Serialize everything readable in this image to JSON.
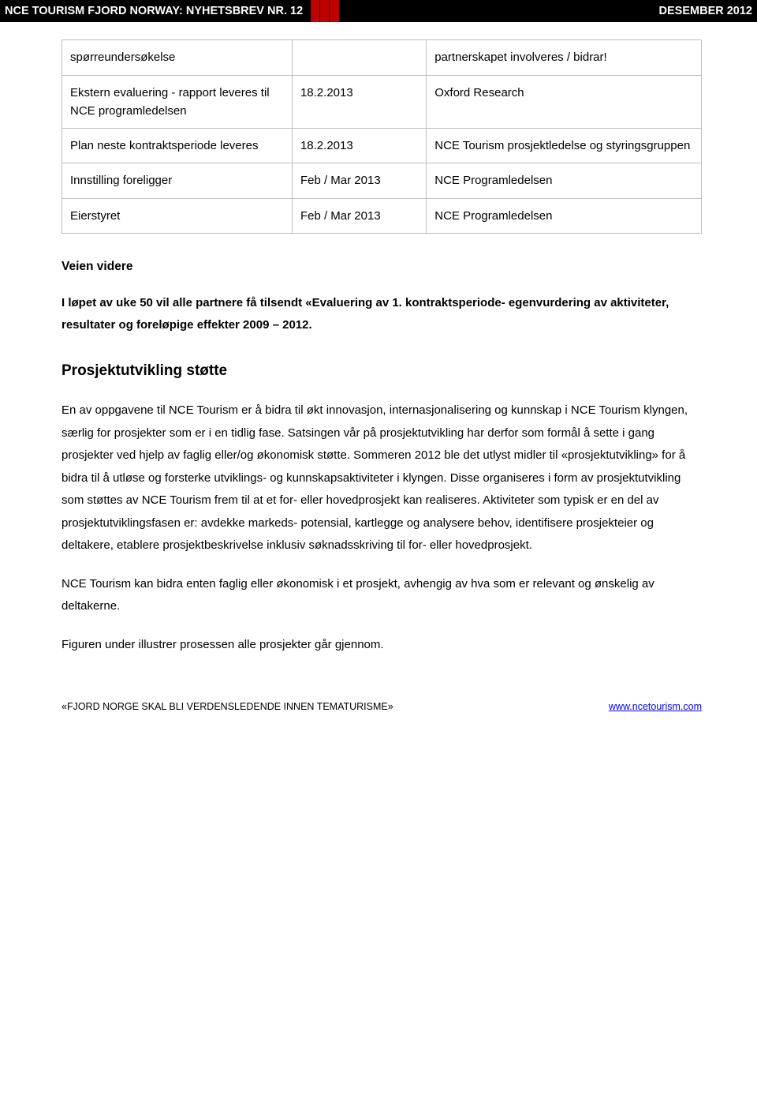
{
  "header": {
    "left": "NCE TOURISM FJORD NORWAY: NYHETSBREV NR. 12",
    "right": "DESEMBER 2012"
  },
  "table": {
    "rows": [
      [
        "spørreundersøkelse",
        "",
        "partnerskapet involveres / bidrar!"
      ],
      [
        "Ekstern evaluering - rapport leveres til NCE programledelsen",
        "18.2.2013",
        "Oxford Research"
      ],
      [
        "Plan neste kontraktsperiode leveres",
        "18.2.2013",
        "NCE Tourism prosjektledelse og styringsgruppen"
      ],
      [
        "Innstilling foreligger",
        "Feb / Mar 2013",
        "NCE Programledelsen"
      ],
      [
        "Eierstyret",
        "Feb / Mar 2013",
        "NCE Programledelsen"
      ]
    ]
  },
  "sections": {
    "veien_title": "Veien videre",
    "veien_body": "I løpet av uke 50 vil alle partnere få tilsendt «Evaluering av 1. kontraktsperiode- egenvurdering av aktiviteter, resultater og foreløpige effekter 2009 – 2012.",
    "prosjekt_title": "Prosjektutvikling støtte",
    "prosjekt_p1": "En av oppgavene til NCE Tourism er å bidra til økt innovasjon, internasjonalisering og kunnskap i NCE Tourism klyngen, særlig for prosjekter som er i en tidlig fase. Satsingen vår på prosjektutvikling har derfor som formål å sette i gang prosjekter ved hjelp av faglig eller/og økonomisk støtte. Sommeren 2012 ble det utlyst midler til «prosjektutvikling» for å bidra til å utløse og forsterke utviklings- og kunnskapsaktiviteter i klyngen. Disse organiseres i form av prosjektutvikling som støttes av NCE Tourism frem til at et for- eller hovedprosjekt kan realiseres. Aktiviteter som typisk er en del av prosjektutviklingsfasen er: avdekke markeds- potensial, kartlegge og analysere behov, identifisere prosjekteier og deltakere, etablere prosjektbeskrivelse inklusiv søknadsskriving til for- eller hovedprosjekt.",
    "prosjekt_p2": "NCE Tourism kan bidra enten faglig eller økonomisk i et prosjekt, avhengig av hva som er relevant og ønskelig av deltakerne.",
    "prosjekt_p3": "Figuren under illustrer prosessen alle prosjekter går gjennom."
  },
  "footer": {
    "left": "«FJORD NORGE SKAL BLI VERDENSLEDENDE INNEN TEMATURISME»",
    "right": "www.ncetourism.com"
  },
  "colors": {
    "header_bg": "#000000",
    "header_accent": "#c00000",
    "header_text": "#ffffff",
    "table_border": "#bfbfbf",
    "body_text": "#000000",
    "link": "#0000ee",
    "background": "#ffffff"
  },
  "typography": {
    "body_fontsize": 15,
    "title_fontsize": 19,
    "section_fontsize": 15.5,
    "footer_fontsize": 12.5,
    "font_family": "Arial"
  }
}
